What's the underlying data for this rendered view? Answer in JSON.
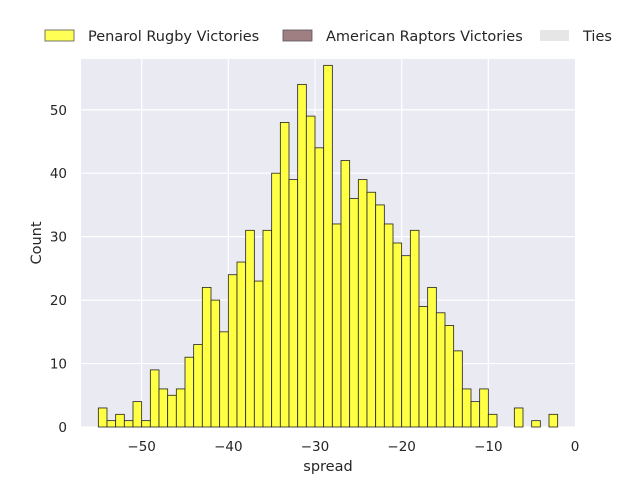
{
  "chart_data": {
    "type": "bar",
    "subtype": "histogram",
    "xlabel": "spread",
    "ylabel": "Count",
    "xlim": [
      -57,
      0
    ],
    "ylim": [
      0,
      58
    ],
    "grid": true,
    "legend_placement": "top",
    "x_ticks": [
      -50,
      -40,
      -30,
      -20,
      -10,
      0
    ],
    "x_tick_labels": [
      "−50",
      "−40",
      "−30",
      "−20",
      "−10",
      "0"
    ],
    "y_ticks": [
      0,
      10,
      20,
      30,
      40,
      50
    ],
    "y_tick_labels": [
      "0",
      "10",
      "20",
      "30",
      "40",
      "50"
    ],
    "legend": [
      {
        "label": "Penarol Rugby Victories",
        "color": "#ffff55"
      },
      {
        "label": "American Raptors Victories",
        "color": "#a07f83"
      },
      {
        "label": "Ties",
        "color": "#e6e6e6"
      }
    ],
    "series": [
      {
        "name": "Penarol Rugby Victories",
        "color": "#ffff44",
        "bin_width": 1,
        "bin_starts": [
          -55,
          -54,
          -53,
          -52,
          -51,
          -50,
          -49,
          -48,
          -47,
          -46,
          -45,
          -44,
          -43,
          -42,
          -41,
          -40,
          -39,
          -38,
          -37,
          -36,
          -35,
          -34,
          -33,
          -32,
          -31,
          -30,
          -29,
          -28,
          -27,
          -26,
          -25,
          -24,
          -23,
          -22,
          -21,
          -20,
          -19,
          -18,
          -17,
          -16,
          -15,
          -14,
          -13,
          -12,
          -11,
          -10,
          -9,
          -8,
          -7,
          -6,
          -5,
          -4,
          -3
        ],
        "values": [
          3,
          1,
          2,
          1,
          4,
          1,
          9,
          6,
          5,
          6,
          11,
          13,
          22,
          20,
          15,
          24,
          26,
          31,
          23,
          31,
          40,
          48,
          39,
          54,
          49,
          44,
          57,
          32,
          42,
          36,
          39,
          37,
          35,
          32,
          29,
          27,
          31,
          19,
          22,
          18,
          16,
          12,
          6,
          4,
          6,
          2,
          0,
          0,
          3,
          0,
          1,
          0,
          2
        ]
      }
    ]
  },
  "colors": {
    "axes_background": "#eaeaf2",
    "grid": "#ffffff",
    "bar_edge": "#222222",
    "text": "#262626"
  }
}
